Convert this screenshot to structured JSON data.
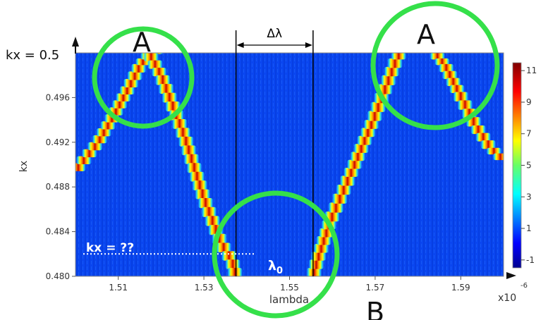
{
  "chart_data": {
    "type": "heatmap",
    "xlabel": "lambda",
    "ylabel": "kx",
    "x_multiplier": "x10",
    "x_exponent": "-6",
    "xlim": [
      1.5,
      1.6
    ],
    "ylim": [
      0.48,
      0.5
    ],
    "x_ticks": [
      "1.51",
      "1.53",
      "1.55",
      "1.57",
      "1.59"
    ],
    "y_ticks": [
      "0.480",
      "0.484",
      "0.488",
      "0.492",
      "0.496"
    ],
    "colorbar_ticks": [
      "-1",
      "1",
      "3",
      "5",
      "7",
      "9",
      "11"
    ],
    "colorbar_range": [
      -1.5,
      11.5
    ],
    "series": [
      {
        "x": [
          1.5,
          1.5052,
          1.509,
          1.5125,
          1.5152,
          1.5175,
          1.52
        ],
        "y": [
          0.4895,
          0.492,
          0.4945,
          0.497,
          0.499,
          0.5,
          0.5
        ]
      },
      {
        "x": [
          1.5172,
          1.52,
          1.5255,
          1.53,
          1.534,
          1.5365,
          1.5375
        ],
        "y": [
          0.5,
          0.498,
          0.4925,
          0.487,
          0.483,
          0.4815,
          0.48
        ]
      },
      {
        "x": [
          1.5555,
          1.5565,
          1.5595,
          1.564,
          1.5695,
          1.5735,
          1.575,
          1.576
        ],
        "y": [
          0.48,
          0.4815,
          0.485,
          0.489,
          0.494,
          0.498,
          0.4995,
          0.5
        ]
      },
      {
        "x": [
          1.584,
          1.5862,
          1.5895,
          1.5935,
          1.597,
          1.6
        ],
        "y": [
          0.5,
          0.499,
          0.4965,
          0.4935,
          0.4915,
          0.4905
        ]
      }
    ],
    "annotations": {
      "kx_top": "kx = 0.5",
      "kx_unknown": "kx = ??",
      "delta_lambda": "Δλ",
      "lambda0_base": "λ",
      "lambda0_sub": "0",
      "region_a_left": "A",
      "region_a_right": "A",
      "region_b": "B"
    },
    "annotation_lines": {
      "band_gap_edges": [
        1.5375,
        1.5555
      ],
      "kx_unknown_level": 0.482
    }
  },
  "colors": {
    "background": "#0a46f0",
    "highlight_circle": "#35e04a",
    "annotation_text_on_plot": "#ffffff",
    "axis_text": "#333333"
  }
}
